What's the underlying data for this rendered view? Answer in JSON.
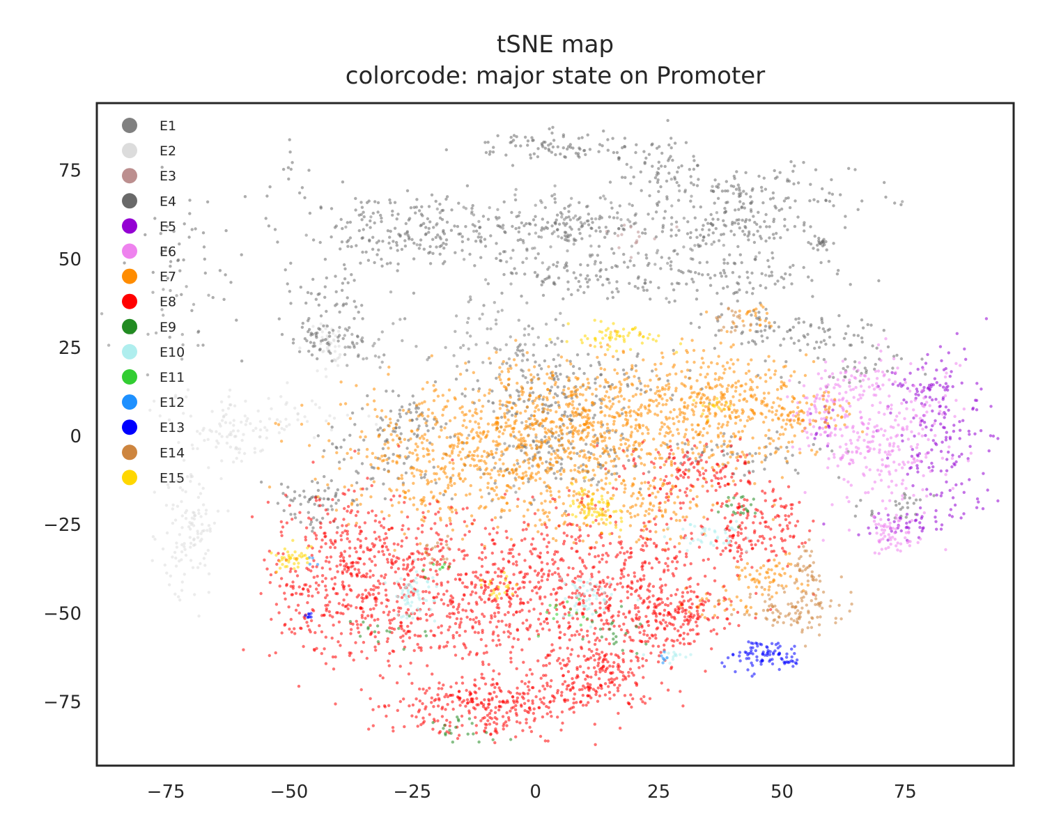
{
  "chart_data": {
    "type": "scatter",
    "title": [
      "tSNE map",
      "colorcode: major state on Promoter"
    ],
    "xlabel": "",
    "ylabel": "",
    "xlim": [
      -89,
      97
    ],
    "ylim": [
      -93,
      94
    ],
    "xticks": [
      -75,
      -50,
      -25,
      0,
      25,
      50,
      75
    ],
    "yticks": [
      -75,
      -50,
      -25,
      0,
      25,
      50,
      75
    ],
    "tick_format_minus": "−",
    "grid": false,
    "legend": {
      "placement": "top-left",
      "entries": [
        {
          "name": "E1",
          "color": "#808080"
        },
        {
          "name": "E2",
          "color": "#dcdcdc"
        },
        {
          "name": "E3",
          "color": "#bc8f8f"
        },
        {
          "name": "E4",
          "color": "#696969"
        },
        {
          "name": "E5",
          "color": "#9400d3"
        },
        {
          "name": "E6",
          "color": "#ee82ee"
        },
        {
          "name": "E7",
          "color": "#ff8c00"
        },
        {
          "name": "E8",
          "color": "#ff0000"
        },
        {
          "name": "E9",
          "color": "#228b22"
        },
        {
          "name": "E10",
          "color": "#afeeee"
        },
        {
          "name": "E11",
          "color": "#32cd32"
        },
        {
          "name": "E12",
          "color": "#1e90ff"
        },
        {
          "name": "E13",
          "color": "#0000ff"
        },
        {
          "name": "E14",
          "color": "#cd853f"
        },
        {
          "name": "E15",
          "color": "#ffd700"
        }
      ]
    },
    "series": [
      {
        "name": "E1",
        "color": "#808080",
        "clusters": [
          {
            "cx": -10,
            "cy": 29,
            "sx": 8,
            "sy": 6,
            "n": 60
          },
          {
            "cx": -35,
            "cy": 25,
            "sx": 3,
            "sy": 4,
            "n": 30
          },
          {
            "cx": 10,
            "cy": 60,
            "sx": 20,
            "sy": 8,
            "n": 120
          },
          {
            "cx": -75,
            "cy": 30,
            "sx": 6,
            "sy": 8,
            "n": 25
          },
          {
            "cx": 0,
            "cy": 0,
            "sx": 6,
            "sy": 8,
            "n": 50
          }
        ]
      },
      {
        "name": "E2",
        "color": "#dcdcdc",
        "clusters": [
          {
            "cx": -70,
            "cy": -25,
            "sx": 3,
            "sy": 12,
            "n": 120
          },
          {
            "cx": -62,
            "cy": 2,
            "sx": 6,
            "sy": 5,
            "n": 90
          },
          {
            "cx": -47,
            "cy": 6,
            "sx": 5,
            "sy": 3,
            "n": 30
          },
          {
            "cx": -42,
            "cy": 25,
            "sx": 2,
            "sy": 4,
            "n": 40
          }
        ]
      },
      {
        "name": "E3",
        "color": "#bc8f8f",
        "clusters": [
          {
            "cx": 20,
            "cy": 57,
            "sx": 3,
            "sy": 2,
            "n": 14
          }
        ]
      },
      {
        "name": "E4",
        "color": "#696969",
        "clusters": [
          {
            "cx": -25,
            "cy": 58,
            "sx": 8,
            "sy": 5,
            "n": 180
          },
          {
            "cx": 5,
            "cy": 82,
            "sx": 10,
            "sy": 2,
            "n": 90
          },
          {
            "cx": 25,
            "cy": 75,
            "sx": 5,
            "sy": 5,
            "n": 60
          },
          {
            "cx": 45,
            "cy": 68,
            "sx": 10,
            "sy": 4,
            "n": 120
          },
          {
            "cx": 40,
            "cy": 58,
            "sx": 8,
            "sy": 3,
            "n": 110
          },
          {
            "cx": 5,
            "cy": 60,
            "sx": 8,
            "sy": 3,
            "n": 120
          },
          {
            "cx": 10,
            "cy": 45,
            "sx": 12,
            "sy": 4,
            "n": 110
          },
          {
            "cx": 40,
            "cy": 45,
            "sx": 12,
            "sy": 3,
            "n": 90
          },
          {
            "cx": -40,
            "cy": 38,
            "sx": 5,
            "sy": 6,
            "n": 60
          },
          {
            "cx": -45,
            "cy": 27,
            "sx": 3,
            "sy": 3,
            "n": 40
          },
          {
            "cx": 58,
            "cy": 54,
            "sx": 1,
            "sy": 1,
            "n": 20
          },
          {
            "cx": 10,
            "cy": 15,
            "sx": 15,
            "sy": 5,
            "n": 100
          },
          {
            "cx": 50,
            "cy": 30,
            "sx": 10,
            "sy": 4,
            "n": 90
          },
          {
            "cx": -30,
            "cy": -5,
            "sx": 8,
            "sy": 8,
            "n": 80
          },
          {
            "cx": -45,
            "cy": -20,
            "sx": 5,
            "sy": 4,
            "n": 60
          },
          {
            "cx": 0,
            "cy": 5,
            "sx": 5,
            "sy": 12,
            "n": 120
          },
          {
            "cx": 10,
            "cy": -5,
            "sx": 8,
            "sy": 5,
            "n": 70
          },
          {
            "cx": 40,
            "cy": -5,
            "sx": 10,
            "sy": 3,
            "n": 60
          },
          {
            "cx": 65,
            "cy": 20,
            "sx": 6,
            "sy": 4,
            "n": 40
          },
          {
            "cx": 75,
            "cy": -20,
            "sx": 4,
            "sy": 2,
            "n": 25
          },
          {
            "cx": -70,
            "cy": 50,
            "sx": 6,
            "sy": 12,
            "n": 40
          },
          {
            "cx": -45,
            "cy": 65,
            "sx": 6,
            "sy": 10,
            "n": 30
          },
          {
            "cx": -25,
            "cy": 5,
            "sx": 3,
            "sy": 3,
            "n": 40
          }
        ]
      },
      {
        "name": "E5",
        "color": "#9400d3",
        "clusters": [
          {
            "cx": 82,
            "cy": 0,
            "sx": 5,
            "sy": 12,
            "n": 150
          },
          {
            "cx": 80,
            "cy": 14,
            "sx": 4,
            "sy": 2,
            "n": 40
          },
          {
            "cx": 75,
            "cy": -25,
            "sx": 5,
            "sy": 2,
            "n": 40
          },
          {
            "cx": 59,
            "cy": 4,
            "sx": 1,
            "sy": 4,
            "n": 15
          }
        ]
      },
      {
        "name": "E6",
        "color": "#ee82ee",
        "clusters": [
          {
            "cx": 70,
            "cy": 0,
            "sx": 7,
            "sy": 10,
            "n": 260
          },
          {
            "cx": 72,
            "cy": -28,
            "sx": 3,
            "sy": 3,
            "n": 60
          },
          {
            "cx": 58,
            "cy": 8,
            "sx": 3,
            "sy": 6,
            "n": 60
          },
          {
            "cx": 65,
            "cy": 15,
            "sx": 4,
            "sy": 3,
            "n": 50
          }
        ]
      },
      {
        "name": "E7",
        "color": "#ff8c00",
        "clusters": [
          {
            "cx": -10,
            "cy": -5,
            "sx": 15,
            "sy": 10,
            "n": 700
          },
          {
            "cx": 15,
            "cy": 5,
            "sx": 15,
            "sy": 8,
            "n": 600
          },
          {
            "cx": 40,
            "cy": 10,
            "sx": 8,
            "sy": 8,
            "n": 300
          },
          {
            "cx": 20,
            "cy": -20,
            "sx": 10,
            "sy": 5,
            "n": 150
          },
          {
            "cx": 48,
            "cy": -40,
            "sx": 4,
            "sy": 3,
            "n": 60
          },
          {
            "cx": 38,
            "cy": -48,
            "sx": 4,
            "sy": 2,
            "n": 30
          },
          {
            "cx": 55,
            "cy": 5,
            "sx": 5,
            "sy": 4,
            "n": 60
          },
          {
            "cx": 45,
            "cy": 35,
            "sx": 2,
            "sy": 2,
            "n": 20
          }
        ]
      },
      {
        "name": "E8",
        "color": "#ff0000",
        "clusters": [
          {
            "cx": -38,
            "cy": -40,
            "sx": 8,
            "sy": 12,
            "n": 450
          },
          {
            "cx": -10,
            "cy": -45,
            "sx": 15,
            "sy": 12,
            "n": 700
          },
          {
            "cx": 20,
            "cy": -45,
            "sx": 10,
            "sy": 12,
            "n": 450
          },
          {
            "cx": -10,
            "cy": -76,
            "sx": 10,
            "sy": 4,
            "n": 300
          },
          {
            "cx": 12,
            "cy": -68,
            "sx": 5,
            "sy": 4,
            "n": 150
          },
          {
            "cx": 45,
            "cy": -25,
            "sx": 5,
            "sy": 5,
            "n": 150
          },
          {
            "cx": 32,
            "cy": -10,
            "sx": 6,
            "sy": 4,
            "n": 120
          },
          {
            "cx": 30,
            "cy": -50,
            "sx": 5,
            "sy": 3,
            "n": 80
          }
        ]
      },
      {
        "name": "E9",
        "color": "#228b22",
        "clusters": [
          {
            "cx": -15,
            "cy": -83,
            "sx": 3,
            "sy": 1.5,
            "n": 20
          },
          {
            "cx": 15,
            "cy": -55,
            "sx": 3,
            "sy": 4,
            "n": 20
          },
          {
            "cx": 42,
            "cy": -20,
            "sx": 2,
            "sy": 2,
            "n": 20
          },
          {
            "cx": -30,
            "cy": -55,
            "sx": 4,
            "sy": 3,
            "n": 15
          }
        ]
      },
      {
        "name": "E10",
        "color": "#afeeee",
        "clusters": [
          {
            "cx": -25,
            "cy": -45,
            "sx": 2,
            "sy": 4,
            "n": 60
          },
          {
            "cx": 10,
            "cy": -45,
            "sx": 4,
            "sy": 3,
            "n": 50
          },
          {
            "cx": 35,
            "cy": -28,
            "sx": 4,
            "sy": 2,
            "n": 40
          },
          {
            "cx": 28,
            "cy": -62,
            "sx": 2,
            "sy": 1,
            "n": 15
          }
        ]
      },
      {
        "name": "E11",
        "color": "#32cd32",
        "clusters": [
          {
            "cx": 6,
            "cy": -50,
            "sx": 3,
            "sy": 2,
            "n": 15
          },
          {
            "cx": -20,
            "cy": -38,
            "sx": 2,
            "sy": 2,
            "n": 8
          }
        ]
      },
      {
        "name": "E12",
        "color": "#1e90ff",
        "clusters": [
          {
            "cx": 26,
            "cy": -62,
            "sx": 1,
            "sy": 1,
            "n": 6
          },
          {
            "cx": -45,
            "cy": -35,
            "sx": 1,
            "sy": 1,
            "n": 4
          }
        ]
      },
      {
        "name": "E13",
        "color": "#0000ff",
        "clusters": [
          {
            "cx": 46,
            "cy": -62,
            "sx": 4,
            "sy": 2,
            "n": 80
          },
          {
            "cx": 52,
            "cy": -64,
            "sx": 1,
            "sy": 0.5,
            "n": 10
          },
          {
            "cx": -46,
            "cy": -51,
            "sx": 0.6,
            "sy": 0.6,
            "n": 8
          }
        ]
      },
      {
        "name": "E14",
        "color": "#cd853f",
        "clusters": [
          {
            "cx": 52,
            "cy": -50,
            "sx": 5,
            "sy": 4,
            "n": 100
          },
          {
            "cx": 55,
            "cy": -38,
            "sx": 1.5,
            "sy": 4,
            "n": 40
          },
          {
            "cx": -20,
            "cy": -33,
            "sx": 2,
            "sy": 2,
            "n": 15
          },
          {
            "cx": 40,
            "cy": 33,
            "sx": 2,
            "sy": 1.5,
            "n": 20
          }
        ]
      },
      {
        "name": "E15",
        "color": "#ffd700",
        "clusters": [
          {
            "cx": 17,
            "cy": 28,
            "sx": 4,
            "sy": 2,
            "n": 60
          },
          {
            "cx": 12,
            "cy": -20,
            "sx": 3,
            "sy": 3,
            "n": 70
          },
          {
            "cx": -50,
            "cy": -35,
            "sx": 2,
            "sy": 2,
            "n": 40
          },
          {
            "cx": -8,
            "cy": -42,
            "sx": 2,
            "sy": 2,
            "n": 20
          },
          {
            "cx": 36,
            "cy": 8,
            "sx": 2,
            "sy": 2,
            "n": 15
          }
        ]
      }
    ]
  }
}
